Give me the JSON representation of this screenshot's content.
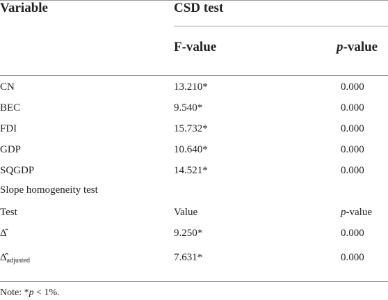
{
  "header": {
    "variable": "Variable",
    "csd_test": "CSD test",
    "f_value": "F-value",
    "p_value": {
      "italic": "p",
      "rest": "-value"
    }
  },
  "rows": [
    [
      "CN",
      "13.210*",
      "0.000"
    ],
    [
      "BEC",
      "9.540*",
      "0.000"
    ],
    [
      "FDI",
      "15.732*",
      "0.000"
    ],
    [
      "GDP",
      "10.640*",
      "0.000"
    ],
    [
      "SQGDP",
      "14.521*",
      "0.000"
    ]
  ],
  "section": "Slope homogeneity test",
  "subheader": {
    "test": "Test",
    "value": "Value",
    "p_value": {
      "italic": "p",
      "rest": "-value"
    }
  },
  "slope_rows": [
    {
      "symbol": "Δ̂",
      "value": "9.250*",
      "p": "0.000"
    },
    {
      "symbol": "Δ̂̂",
      "subscript": "adjusted",
      "value": "7.631*",
      "p": "0.000"
    }
  ],
  "note": {
    "lead": "Note: *",
    "italic": "p",
    "rest": " < 1%."
  }
}
